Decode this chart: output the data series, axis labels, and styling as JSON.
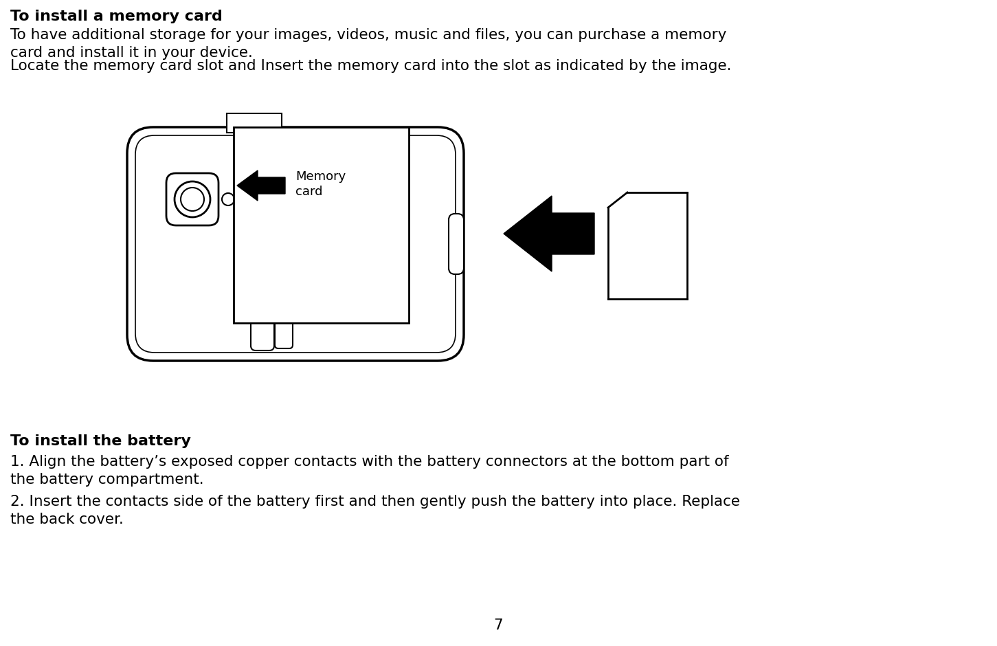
{
  "bg_color": "#ffffff",
  "title_memory": "To install a memory card",
  "body_memory_1": "To have additional storage for your images, videos, music and files, you can purchase a memory\ncard and install it in your device.",
  "body_memory_2": "Locate the memory card slot and Insert the memory card into the slot as indicated by the image.",
  "title_battery": "To install the battery",
  "body_battery_1": "1. Align the battery’s exposed copper contacts with the battery connectors at the bottom part of\nthe battery compartment.",
  "body_battery_2": "2. Insert the contacts side of the battery first and then gently push the battery into place. Replace\nthe back cover.",
  "page_number": "7",
  "text_color": "#000000",
  "font_size_title": 16,
  "font_size_body": 15.5
}
